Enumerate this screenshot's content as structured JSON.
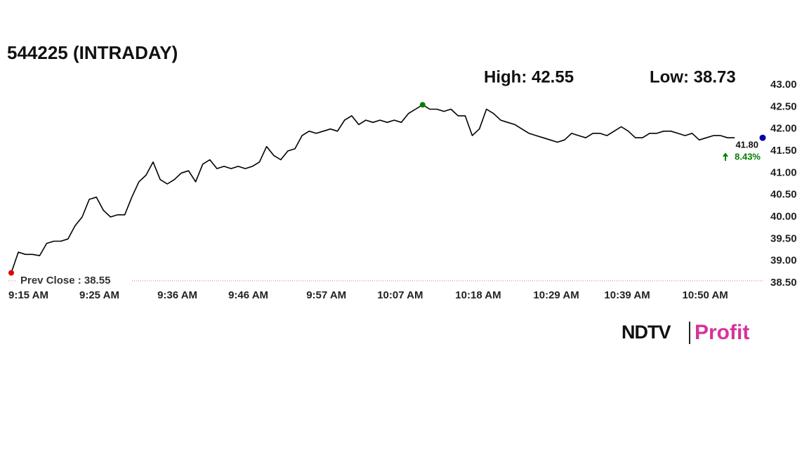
{
  "chart_data": {
    "type": "line",
    "title": "544225 (INTRADAY)",
    "high": {
      "value": 42.55,
      "label": "High: 42.55"
    },
    "low": {
      "value": 38.73,
      "label": "Low: 38.73"
    },
    "prev_close": {
      "value": 38.55,
      "label": "Prev Close : 38.55"
    },
    "last": {
      "value": 41.8,
      "label": "41.80"
    },
    "change": {
      "value": 8.43,
      "label": "8.43%"
    },
    "color": "#000000",
    "categories": [
      "9:15 AM",
      null,
      null,
      null,
      null,
      null,
      null,
      null,
      null,
      null,
      "9:25 AM",
      null,
      null,
      null,
      null,
      null,
      null,
      null,
      null,
      null,
      null,
      "9:36 AM",
      null,
      null,
      null,
      null,
      null,
      null,
      null,
      null,
      null,
      "9:46 AM",
      null,
      null,
      null,
      null,
      null,
      null,
      null,
      null,
      null,
      null,
      "9:57 AM",
      null,
      null,
      null,
      null,
      null,
      null,
      null,
      null,
      null,
      "10:07 AM",
      null,
      null,
      null,
      null,
      null,
      null,
      null,
      null,
      null,
      null,
      "10:18 AM",
      null,
      null,
      null,
      null,
      null,
      null,
      null,
      null,
      null,
      null,
      "10:29 AM",
      null,
      null,
      null,
      null,
      null,
      null,
      null,
      null,
      null,
      "10:39 AM",
      null,
      null,
      null,
      null,
      null,
      null,
      null,
      null,
      null,
      null,
      "10:50 AM",
      null,
      null,
      null,
      null,
      null,
      null,
      null
    ],
    "values": [
      38.73,
      39.2,
      39.15,
      39.15,
      39.12,
      39.4,
      39.45,
      39.45,
      39.5,
      39.8,
      40.0,
      40.4,
      40.45,
      40.15,
      40.0,
      40.05,
      40.05,
      40.45,
      40.8,
      40.95,
      41.25,
      40.85,
      40.75,
      40.85,
      41.0,
      41.05,
      40.8,
      41.2,
      41.3,
      41.1,
      41.15,
      41.1,
      41.15,
      41.1,
      41.15,
      41.25,
      41.6,
      41.4,
      41.3,
      41.5,
      41.55,
      41.85,
      41.95,
      41.9,
      41.95,
      42.0,
      41.95,
      42.2,
      42.3,
      42.1,
      42.2,
      42.15,
      42.2,
      42.15,
      42.2,
      42.15,
      42.35,
      42.45,
      42.55,
      42.45,
      42.45,
      42.4,
      42.45,
      42.3,
      42.3,
      41.85,
      42.0,
      42.45,
      42.35,
      42.2,
      42.15,
      42.1,
      42.0,
      41.9,
      41.85,
      41.8,
      41.75,
      41.7,
      41.75,
      41.9,
      41.85,
      41.8,
      41.9,
      41.9,
      41.85,
      41.95,
      42.05,
      41.95,
      41.8,
      41.8,
      41.9,
      41.9,
      41.95,
      41.95,
      41.9,
      41.85,
      41.9,
      41.75,
      41.8,
      41.85,
      41.85,
      41.8,
      41.8
    ],
    "ylim": [
      38.5,
      43.0
    ],
    "yticks": [
      {
        "value": 38.5,
        "label": "38.50"
      },
      {
        "value": 39,
        "label": "39.00"
      },
      {
        "value": 39.5,
        "label": "39.50"
      },
      {
        "value": 40,
        "label": "40.00"
      },
      {
        "value": 40.5,
        "label": "40.50"
      },
      {
        "value": 41,
        "label": "41.00"
      },
      {
        "value": 41.5,
        "label": "41.50"
      },
      {
        "value": 42,
        "label": "42.00"
      },
      {
        "value": 42.5,
        "label": "42.50"
      },
      {
        "value": 43,
        "label": "43.00"
      }
    ],
    "high_color": "#008000",
    "low_color": "#e00000",
    "last_color": "#0000aa",
    "change_color": "#008000"
  },
  "brand": {
    "name": "NDTV",
    "product": "Profit"
  }
}
